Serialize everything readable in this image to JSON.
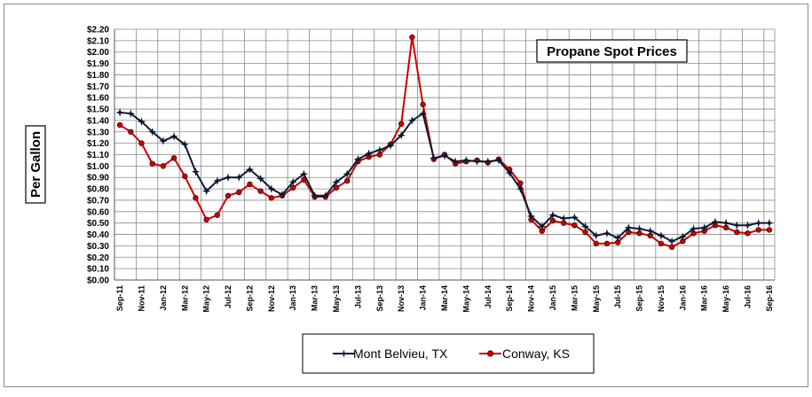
{
  "chart_data": {
    "type": "line",
    "title": "Propane Spot Prices",
    "ylabel": "Per Gallon",
    "xlabel": "",
    "ylim": [
      0,
      2.2
    ],
    "ytick_step": 0.1,
    "ytick_labels": [
      "$0.00",
      "$0.10",
      "$0.20",
      "$0.30",
      "$0.40",
      "$0.50",
      "$0.60",
      "$0.70",
      "$0.80",
      "$0.90",
      "$1.00",
      "$1.10",
      "$1.20",
      "$1.30",
      "$1.40",
      "$1.50",
      "$1.60",
      "$1.70",
      "$1.80",
      "$1.90",
      "$2.00",
      "$2.10",
      "$2.20"
    ],
    "x": [
      "Sep-11",
      "Oct-11",
      "Nov-11",
      "Dec-11",
      "Jan-12",
      "Feb-12",
      "Mar-12",
      "Apr-12",
      "May-12",
      "Jun-12",
      "Jul-12",
      "Aug-12",
      "Sep-12",
      "Oct-12",
      "Nov-12",
      "Dec-12",
      "Jan-13",
      "Feb-13",
      "Mar-13",
      "Apr-13",
      "May-13",
      "Jun-13",
      "Jul-13",
      "Aug-13",
      "Sep-13",
      "Oct-13",
      "Nov-13",
      "Dec-13",
      "Jan-14",
      "Feb-14",
      "Mar-14",
      "Apr-14",
      "May-14",
      "Jun-14",
      "Jul-14",
      "Aug-14",
      "Sep-14",
      "Oct-14",
      "Nov-14",
      "Dec-14",
      "Jan-15",
      "Feb-15",
      "Mar-15",
      "Apr-15",
      "May-15",
      "Jun-15",
      "Jul-15",
      "Aug-15",
      "Sep-15",
      "Oct-15",
      "Nov-15",
      "Dec-15",
      "Jan-16",
      "Feb-16",
      "Mar-16",
      "Apr-16",
      "May-16",
      "Jun-16",
      "Jul-16",
      "Aug-16",
      "Sep-16"
    ],
    "xtick_labels": [
      "Sep-11",
      "Nov-11",
      "Jan-12",
      "Mar-12",
      "May-12",
      "Jul-12",
      "Sep-12",
      "Nov-12",
      "Jan-13",
      "Mar-13",
      "May-13",
      "Jul-13",
      "Sep-13",
      "Nov-13",
      "Jan-14",
      "Mar-14",
      "May-14",
      "Jul-14",
      "Sep-14",
      "Nov-14",
      "Jan-15",
      "Mar-15",
      "May-15",
      "Jul-15",
      "Sep-15",
      "Nov-15",
      "Jan-16",
      "Mar-16",
      "May-16",
      "Jul-16",
      "Sep-16"
    ],
    "grid": true,
    "legend_position": "bottom-center",
    "series": [
      {
        "name": "Mont Belvieu, TX",
        "color": "#0a1a33",
        "marker": "star",
        "values": [
          1.47,
          1.46,
          1.39,
          1.3,
          1.22,
          1.26,
          1.19,
          0.95,
          0.78,
          0.87,
          0.9,
          0.9,
          0.97,
          0.89,
          0.8,
          0.75,
          0.86,
          0.93,
          0.74,
          0.74,
          0.86,
          0.93,
          1.06,
          1.11,
          1.14,
          1.18,
          1.27,
          1.4,
          1.46,
          1.07,
          1.09,
          1.04,
          1.05,
          1.04,
          1.04,
          1.05,
          0.94,
          0.8,
          0.56,
          0.47,
          0.57,
          0.54,
          0.55,
          0.47,
          0.39,
          0.41,
          0.37,
          0.46,
          0.45,
          0.43,
          0.39,
          0.34,
          0.38,
          0.45,
          0.46,
          0.51,
          0.5,
          0.48,
          0.48,
          0.5,
          0.5
        ]
      },
      {
        "name": "Conway, KS",
        "color": "#cc0000",
        "marker": "circle",
        "values": [
          1.36,
          1.3,
          1.2,
          1.02,
          1.0,
          1.07,
          0.91,
          0.72,
          0.53,
          0.57,
          0.74,
          0.77,
          0.84,
          0.78,
          0.72,
          0.74,
          0.81,
          0.88,
          0.73,
          0.73,
          0.81,
          0.87,
          1.04,
          1.08,
          1.1,
          1.19,
          1.37,
          2.13,
          1.54,
          1.06,
          1.1,
          1.02,
          1.04,
          1.05,
          1.03,
          1.06,
          0.97,
          0.85,
          0.53,
          0.43,
          0.52,
          0.5,
          0.48,
          0.42,
          0.32,
          0.32,
          0.33,
          0.42,
          0.41,
          0.39,
          0.32,
          0.29,
          0.34,
          0.41,
          0.43,
          0.48,
          0.46,
          0.42,
          0.41,
          0.44,
          0.44
        ]
      }
    ]
  }
}
